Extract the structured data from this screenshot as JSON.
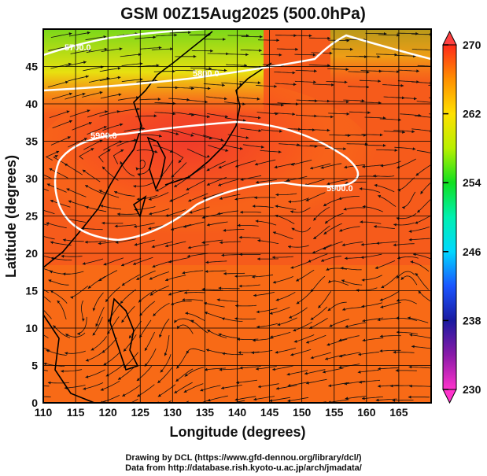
{
  "title": "GSM 00Z15Aug2025 (500.0hPa)",
  "xlabel": "Longitude (degrees)",
  "ylabel": "Latitude  (degrees)",
  "credits": {
    "drawing": "Drawing by DCL (https://www.gfd-dennou.org/library/dcl/)",
    "data": "Data from http://database.rish.kyoto-u.ac.jp/arch/jmadata/"
  },
  "chart_data": {
    "type": "heatmap",
    "title": "GSM 00Z15Aug2025 (500.0hPa)",
    "xlabel": "Longitude (degrees)",
    "ylabel": "Latitude  (degrees)",
    "xlim": [
      110,
      170
    ],
    "ylim": [
      0,
      50
    ],
    "xticks": [
      "110",
      "115",
      "120",
      "125",
      "130",
      "135",
      "140",
      "145",
      "150",
      "155",
      "160",
      "165"
    ],
    "yticks": [
      "0",
      "5",
      "10",
      "15",
      "20",
      "25",
      "30",
      "35",
      "40",
      "45"
    ],
    "grid": true,
    "contour_labels": [
      "5700.0",
      "5800.0",
      "5900.0",
      "5900.0"
    ],
    "colorbar": {
      "range": [
        230,
        270
      ],
      "ticks": [
        "270",
        "262",
        "254",
        "246",
        "238",
        "230"
      ],
      "placement": "right",
      "colors": [
        "#ff33cc",
        "#8a1aa8",
        "#1a1aa0",
        "#1a55ff",
        "#00d8ff",
        "#00f0b0",
        "#10e020",
        "#b8f000",
        "#ffe000",
        "#ff9000",
        "#ff2a1a"
      ]
    },
    "overlay": "streamlines (wind) with black coastlines"
  }
}
